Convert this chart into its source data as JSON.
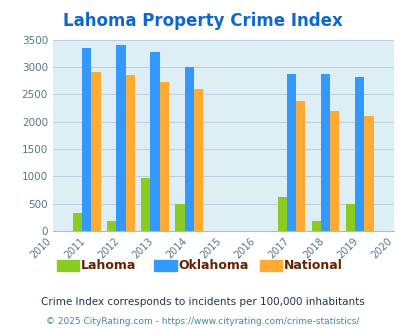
{
  "title": "Lahoma Property Crime Index",
  "years": [
    2010,
    2011,
    2012,
    2013,
    2014,
    2015,
    2016,
    2017,
    2018,
    2019,
    2020
  ],
  "data_years": [
    2011,
    2012,
    2013,
    2014,
    2017,
    2018,
    2019
  ],
  "lahoma": [
    325,
    175,
    975,
    500,
    625,
    175,
    500
  ],
  "oklahoma": [
    3350,
    3400,
    3275,
    3000,
    2875,
    2875,
    2825
  ],
  "national": [
    2900,
    2850,
    2725,
    2600,
    2375,
    2200,
    2100
  ],
  "bar_width": 0.27,
  "colors": {
    "lahoma": "#88cc22",
    "oklahoma": "#3399ff",
    "national": "#ffaa33"
  },
  "ylim": [
    0,
    3500
  ],
  "yticks": [
    0,
    500,
    1000,
    1500,
    2000,
    2500,
    3000,
    3500
  ],
  "bg_color": "#ddeef5",
  "grid_color": "#bbccdd",
  "title_color": "#1166cc",
  "legend_labels": [
    "Lahoma",
    "Oklahoma",
    "National"
  ],
  "legend_label_color": "#662200",
  "footnote1": "Crime Index corresponds to incidents per 100,000 inhabitants",
  "footnote2": "© 2025 CityRating.com - https://www.cityrating.com/crime-statistics/",
  "footnote1_color": "#223355",
  "footnote2_color": "#448899"
}
